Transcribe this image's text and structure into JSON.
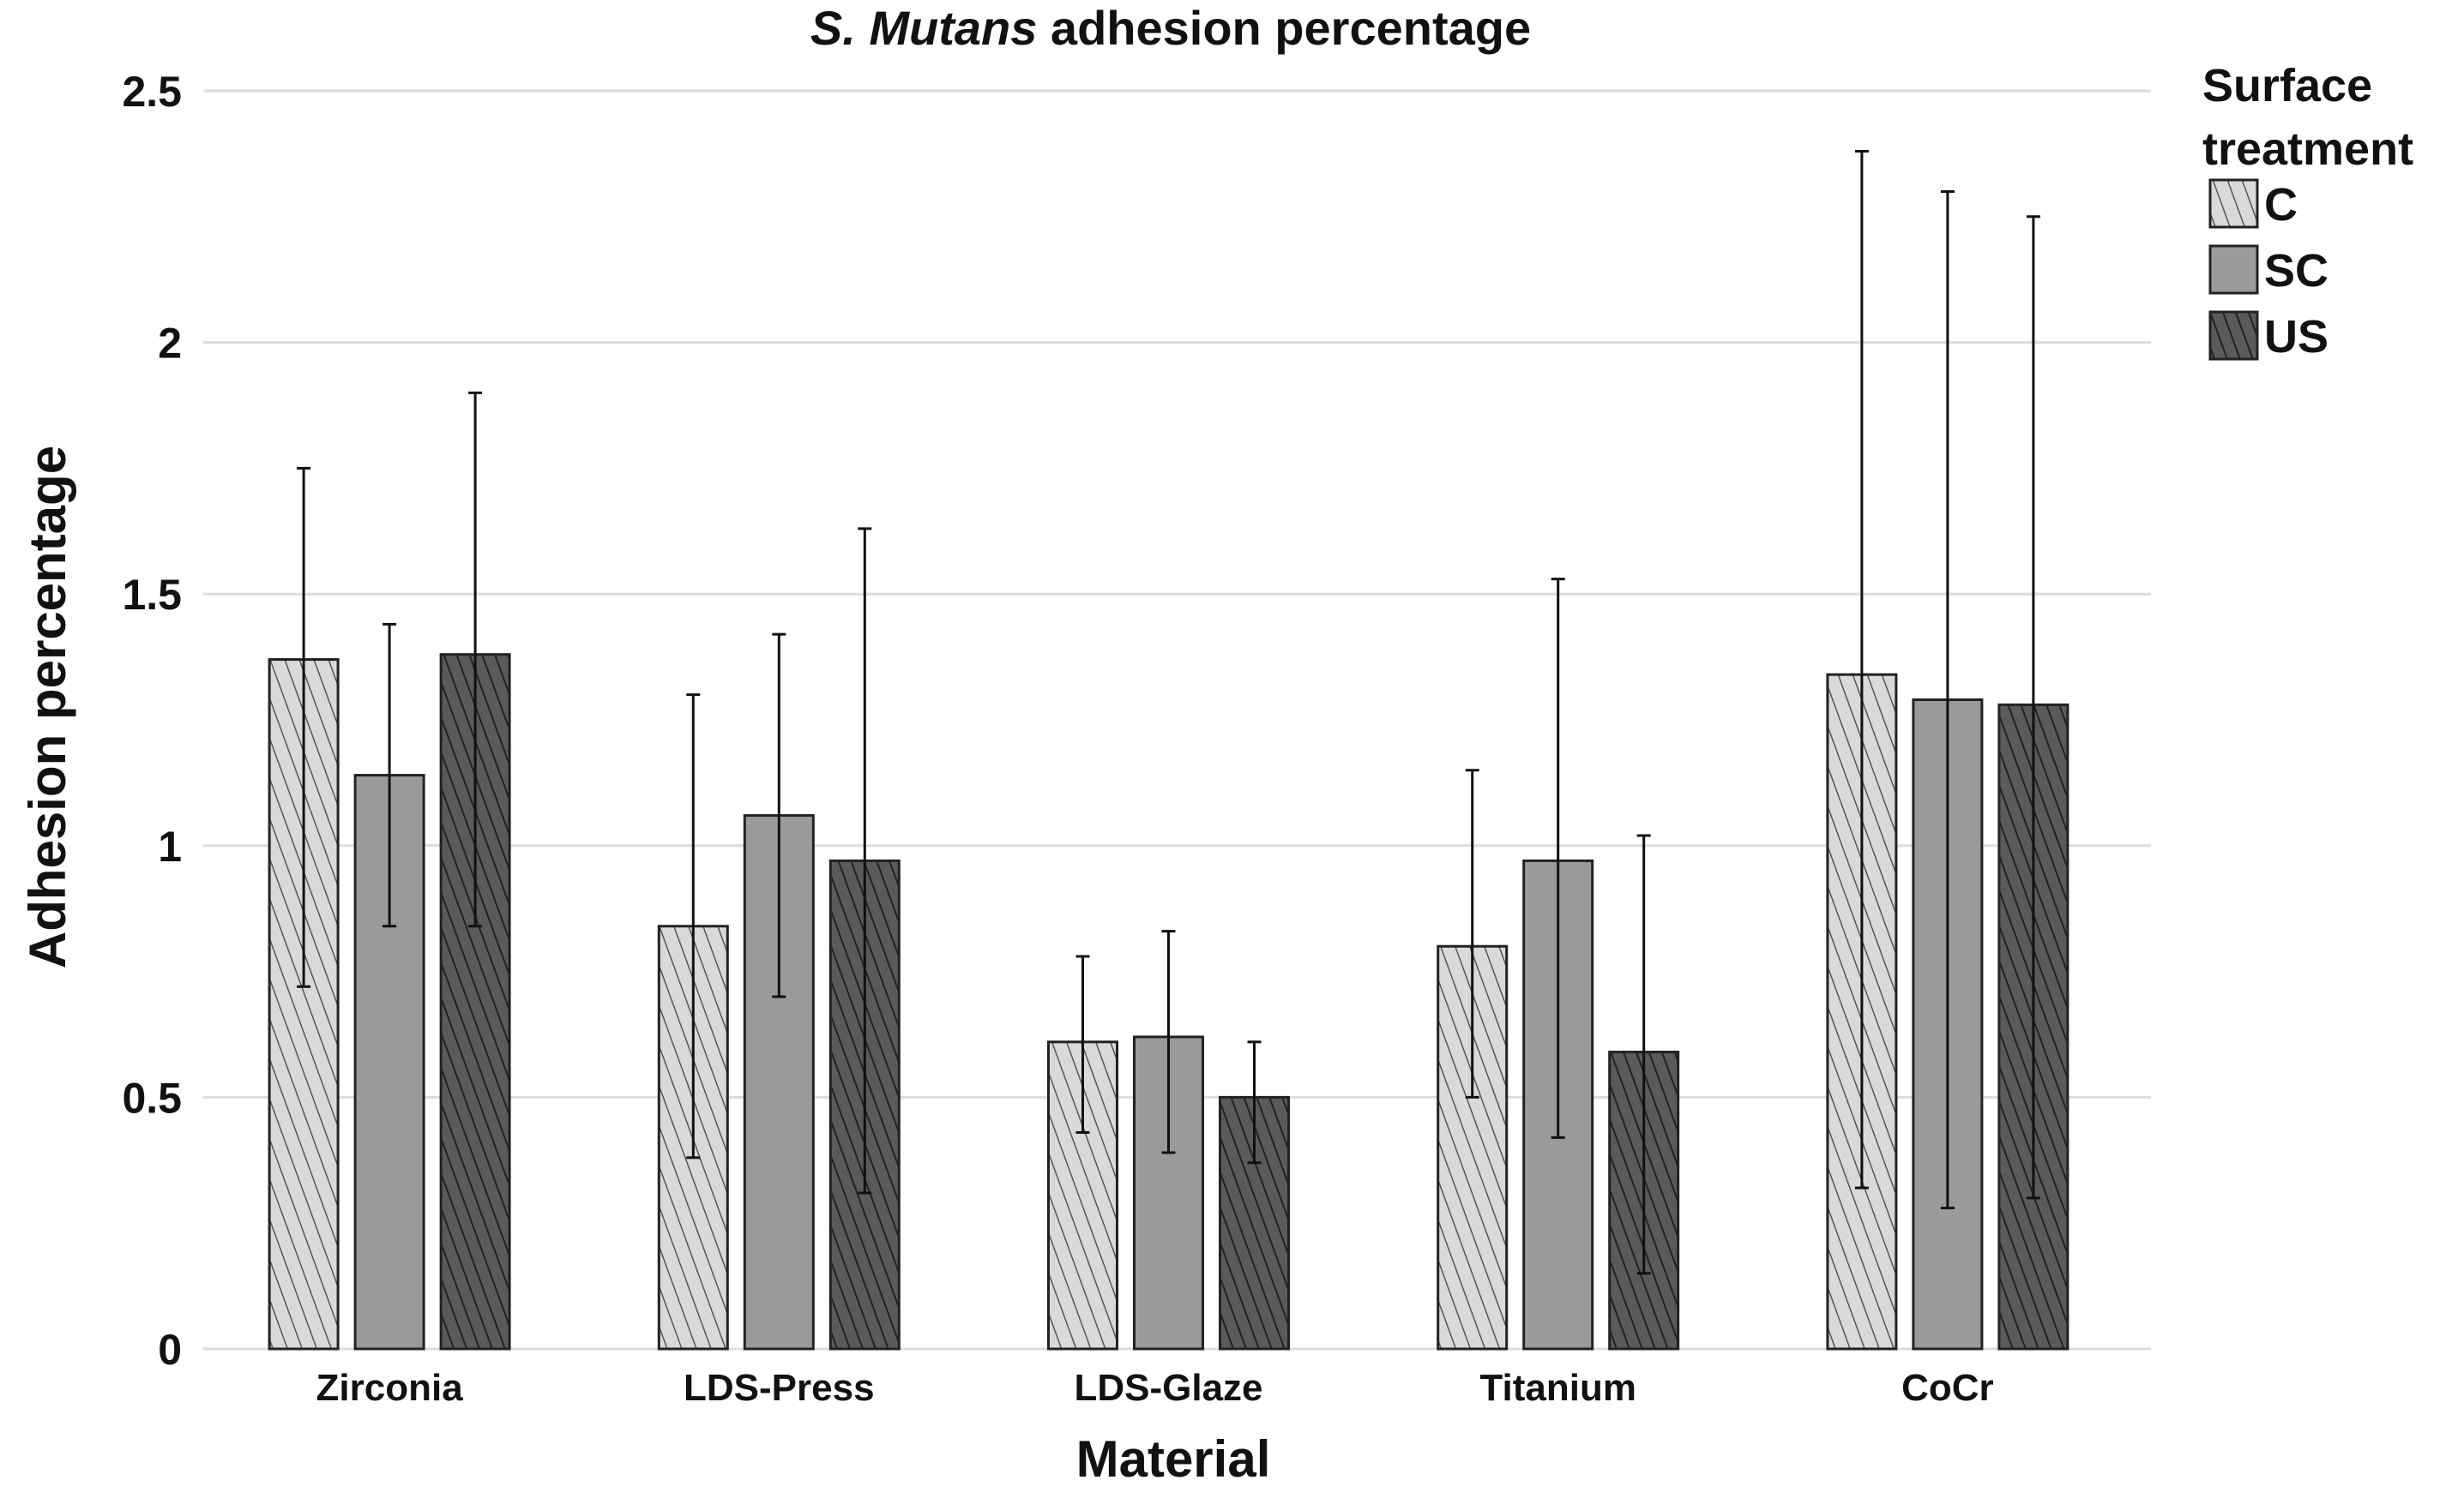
{
  "chart_data": {
    "type": "bar",
    "title_italic": "S. Mutans",
    "title_rest": " adhesion percentage",
    "xlabel": "Material",
    "ylabel": "Adhesion percentage",
    "ylim": [
      0,
      2.5
    ],
    "yticks": [
      0,
      0.5,
      1,
      1.5,
      2,
      2.5
    ],
    "ytick_labels": [
      "0",
      "0.5",
      "1",
      "1.5",
      "2",
      "2.5"
    ],
    "grid": true,
    "categories": [
      "Zirconia",
      "LDS-Press",
      "LDS-Glaze",
      "Titanium",
      "CoCr"
    ],
    "legend": {
      "title_line1": "Surface",
      "title_line2": "treatment",
      "placement": "right"
    },
    "series": [
      {
        "name": "C",
        "pattern": "light-hatch",
        "values": [
          1.37,
          0.84,
          0.61,
          0.8,
          1.34
        ],
        "err_upper": [
          1.75,
          1.3,
          0.78,
          1.15,
          2.38
        ],
        "err_lower": [
          0.72,
          0.38,
          0.43,
          0.5,
          0.32
        ]
      },
      {
        "name": "SC",
        "pattern": "solid-gray",
        "values": [
          1.14,
          1.06,
          0.62,
          0.97,
          1.29
        ],
        "err_upper": [
          1.44,
          1.42,
          0.83,
          1.53,
          2.3
        ],
        "err_lower": [
          0.84,
          0.7,
          0.39,
          0.42,
          0.28
        ]
      },
      {
        "name": "US",
        "pattern": "dark-hatch",
        "values": [
          1.38,
          0.97,
          0.5,
          0.59,
          1.28
        ],
        "err_upper": [
          1.9,
          1.63,
          0.61,
          1.02,
          2.25
        ],
        "err_lower": [
          0.84,
          0.31,
          0.37,
          0.15,
          0.3
        ]
      }
    ],
    "colors": {
      "light_fill": "#d9d9d9",
      "light_hatch": "#555555",
      "mid_fill": "#9a9a9a",
      "dark_fill": "#5a5a5a",
      "dark_hatch": "#222222",
      "grid": "#dcdcdc",
      "outline": "#222222"
    }
  }
}
